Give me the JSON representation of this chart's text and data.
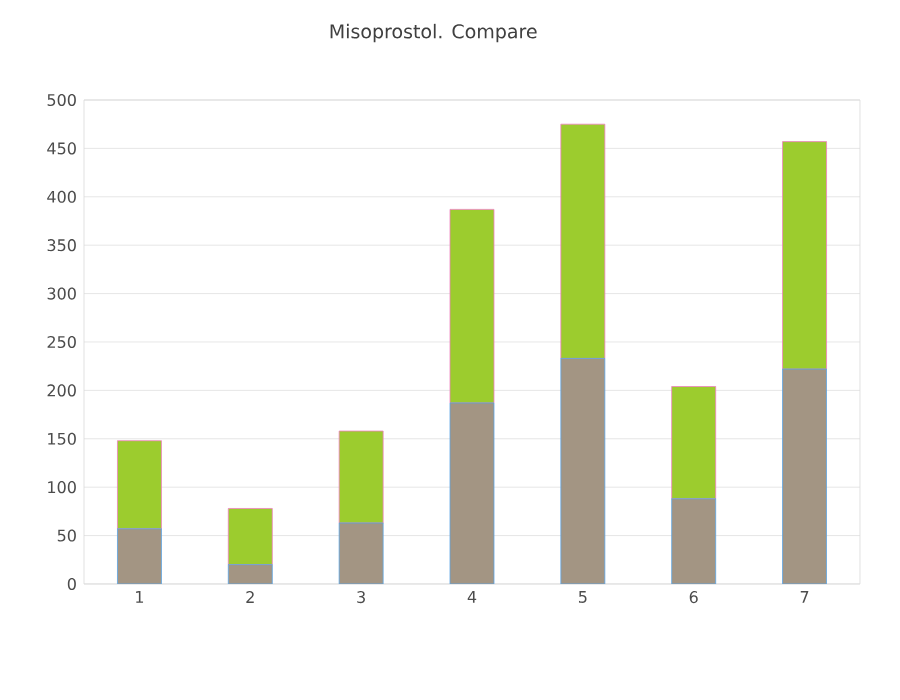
{
  "chart_data": {
    "type": "bar",
    "title": "Misoprostol. Compare",
    "categories": [
      "1",
      "2",
      "3",
      "4",
      "5",
      "6",
      "7"
    ],
    "stacked": true,
    "series": [
      {
        "color": "#a39583",
        "values": [
          57,
          20,
          63,
          187,
          233,
          88,
          222
        ]
      },
      {
        "color": "#9ccc2e",
        "values": [
          91,
          58,
          95,
          200,
          242,
          116,
          235
        ]
      }
    ],
    "ylim": [
      0,
      500
    ],
    "yticks": [
      0,
      50,
      100,
      150,
      200,
      250,
      300,
      350,
      400,
      450,
      500
    ],
    "grid": "y"
  }
}
